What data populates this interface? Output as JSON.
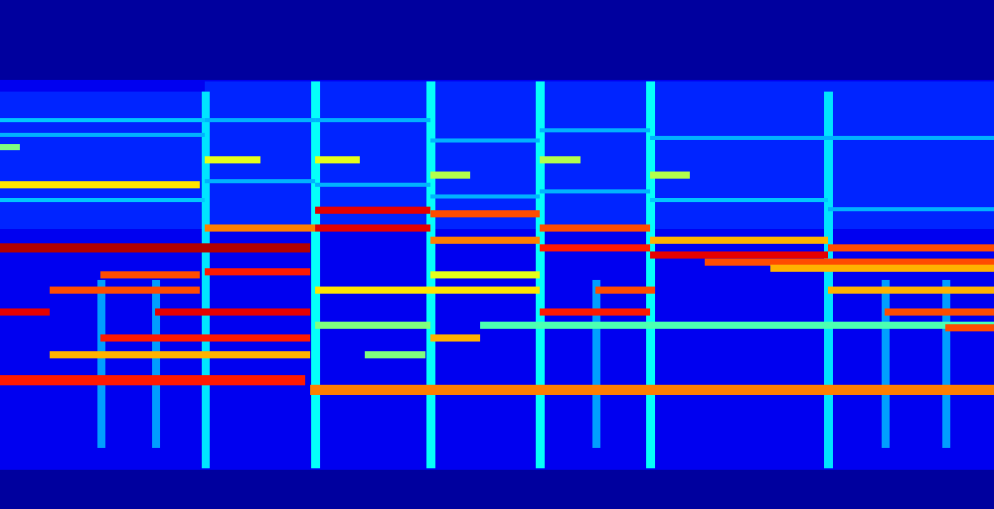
{
  "chart_data": {
    "type": "heatmap",
    "color": "jet",
    "tick_labels": false,
    "xlim": [
      0,
      100
    ],
    "ylim": [
      0,
      100
    ],
    "value_range": [
      0,
      1
    ],
    "cells": [
      {
        "x1": 0,
        "x2": 100,
        "y1": 0,
        "y2": 100,
        "value": 0.03
      },
      {
        "x1": 0,
        "x2": 100,
        "y1": 7.7,
        "y2": 84.3,
        "value": 0.11
      },
      {
        "x1": 0,
        "x2": 20.6,
        "y1": 55,
        "y2": 82,
        "value": 0.16
      },
      {
        "x1": 20.6,
        "x2": 100,
        "y1": 55,
        "y2": 84,
        "value": 0.16
      },
      {
        "x1": 20.3,
        "x2": 21.1,
        "y1": 8,
        "y2": 82,
        "value": 0.35
      },
      {
        "x1": 31.3,
        "x2": 32.2,
        "y1": 8,
        "y2": 84,
        "value": 0.38
      },
      {
        "x1": 42.9,
        "x2": 43.8,
        "y1": 8,
        "y2": 84,
        "value": 0.38
      },
      {
        "x1": 53.9,
        "x2": 54.8,
        "y1": 8,
        "y2": 84,
        "value": 0.38
      },
      {
        "x1": 65.0,
        "x2": 65.9,
        "y1": 8,
        "y2": 84,
        "value": 0.38
      },
      {
        "x1": 82.9,
        "x2": 83.8,
        "y1": 8,
        "y2": 82,
        "value": 0.35
      },
      {
        "x1": 9.8,
        "x2": 10.6,
        "y1": 12,
        "y2": 45,
        "value": 0.28
      },
      {
        "x1": 15.3,
        "x2": 16.1,
        "y1": 12,
        "y2": 45,
        "value": 0.28
      },
      {
        "x1": 59.6,
        "x2": 60.4,
        "y1": 12,
        "y2": 45,
        "value": 0.28
      },
      {
        "x1": 88.7,
        "x2": 89.5,
        "y1": 12,
        "y2": 45,
        "value": 0.28
      },
      {
        "x1": 94.8,
        "x2": 95.6,
        "y1": 12,
        "y2": 45,
        "value": 0.28
      },
      {
        "x1": 0,
        "x2": 20.6,
        "y1": 76.0,
        "y2": 76.8,
        "value": 0.32
      },
      {
        "x1": 0,
        "x2": 20.6,
        "y1": 73.1,
        "y2": 73.9,
        "value": 0.3
      },
      {
        "x1": 0,
        "x2": 20.6,
        "y1": 60.3,
        "y2": 61.1,
        "value": 0.32
      },
      {
        "x1": 0,
        "x2": 2.0,
        "y1": 70.5,
        "y2": 71.7,
        "value": 0.5
      },
      {
        "x1": 20.6,
        "x2": 31.7,
        "y1": 76.0,
        "y2": 76.8,
        "value": 0.3
      },
      {
        "x1": 20.6,
        "x2": 31.7,
        "y1": 64.0,
        "y2": 64.8,
        "value": 0.3
      },
      {
        "x1": 31.7,
        "x2": 43.3,
        "y1": 76.0,
        "y2": 76.8,
        "value": 0.3
      },
      {
        "x1": 31.7,
        "x2": 43.3,
        "y1": 63.3,
        "y2": 64.1,
        "value": 0.3
      },
      {
        "x1": 43.3,
        "x2": 54.3,
        "y1": 72.0,
        "y2": 72.8,
        "value": 0.3
      },
      {
        "x1": 43.3,
        "x2": 54.3,
        "y1": 61.0,
        "y2": 61.8,
        "value": 0.3
      },
      {
        "x1": 54.3,
        "x2": 65.4,
        "y1": 74.0,
        "y2": 74.8,
        "value": 0.3
      },
      {
        "x1": 54.3,
        "x2": 65.4,
        "y1": 62.0,
        "y2": 62.8,
        "value": 0.3
      },
      {
        "x1": 65.4,
        "x2": 83.3,
        "y1": 72.5,
        "y2": 73.3,
        "value": 0.3
      },
      {
        "x1": 65.4,
        "x2": 83.3,
        "y1": 60.3,
        "y2": 61.1,
        "value": 0.32
      },
      {
        "x1": 83.3,
        "x2": 100,
        "y1": 72.5,
        "y2": 73.3,
        "value": 0.3
      },
      {
        "x1": 83.3,
        "x2": 100,
        "y1": 58.5,
        "y2": 59.3,
        "value": 0.3
      },
      {
        "x1": 0,
        "x2": 20.1,
        "y1": 63.0,
        "y2": 64.4,
        "value": 0.65
      },
      {
        "x1": 20.6,
        "x2": 26.2,
        "y1": 67.9,
        "y2": 69.3,
        "value": 0.6
      },
      {
        "x1": 31.7,
        "x2": 36.2,
        "y1": 67.9,
        "y2": 69.3,
        "value": 0.6
      },
      {
        "x1": 43.3,
        "x2": 47.3,
        "y1": 64.9,
        "y2": 66.3,
        "value": 0.55
      },
      {
        "x1": 54.3,
        "x2": 58.4,
        "y1": 67.9,
        "y2": 69.3,
        "value": 0.55
      },
      {
        "x1": 65.4,
        "x2": 69.4,
        "y1": 64.9,
        "y2": 66.3,
        "value": 0.55
      },
      {
        "x1": 31.7,
        "x2": 43.3,
        "y1": 58.0,
        "y2": 59.4,
        "value": 0.9
      },
      {
        "x1": 43.3,
        "x2": 54.3,
        "y1": 57.3,
        "y2": 58.7,
        "value": 0.8
      },
      {
        "x1": 20.6,
        "x2": 31.7,
        "y1": 54.5,
        "y2": 55.9,
        "value": 0.75
      },
      {
        "x1": 31.7,
        "x2": 43.3,
        "y1": 54.5,
        "y2": 55.9,
        "value": 0.9
      },
      {
        "x1": 54.3,
        "x2": 65.4,
        "y1": 54.5,
        "y2": 55.9,
        "value": 0.8
      },
      {
        "x1": 43.3,
        "x2": 54.3,
        "y1": 52.1,
        "y2": 53.5,
        "value": 0.75
      },
      {
        "x1": 65.4,
        "x2": 83.3,
        "y1": 52.1,
        "y2": 53.5,
        "value": 0.7
      },
      {
        "x1": 0,
        "x2": 31.2,
        "y1": 50.4,
        "y2": 52.2,
        "value": 0.95
      },
      {
        "x1": 54.3,
        "x2": 65.4,
        "y1": 50.6,
        "y2": 52.0,
        "value": 0.85
      },
      {
        "x1": 83.3,
        "x2": 100,
        "y1": 50.6,
        "y2": 52.0,
        "value": 0.8
      },
      {
        "x1": 65.4,
        "x2": 83.3,
        "y1": 49.2,
        "y2": 50.6,
        "value": 0.9
      },
      {
        "x1": 70.9,
        "x2": 100,
        "y1": 47.8,
        "y2": 49.2,
        "value": 0.8
      },
      {
        "x1": 77.5,
        "x2": 100,
        "y1": 46.6,
        "y2": 48.0,
        "value": 0.7
      },
      {
        "x1": 10.1,
        "x2": 20.1,
        "y1": 45.3,
        "y2": 46.7,
        "value": 0.8
      },
      {
        "x1": 20.6,
        "x2": 31.2,
        "y1": 45.9,
        "y2": 47.3,
        "value": 0.85
      },
      {
        "x1": 43.3,
        "x2": 54.3,
        "y1": 45.3,
        "y2": 46.7,
        "value": 0.6
      },
      {
        "x1": 5.0,
        "x2": 20.1,
        "y1": 42.3,
        "y2": 43.7,
        "value": 0.8
      },
      {
        "x1": 31.7,
        "x2": 54.3,
        "y1": 42.3,
        "y2": 43.7,
        "value": 0.65
      },
      {
        "x1": 59.9,
        "x2": 65.9,
        "y1": 42.3,
        "y2": 43.7,
        "value": 0.8
      },
      {
        "x1": 83.3,
        "x2": 100,
        "y1": 42.3,
        "y2": 43.7,
        "value": 0.7
      },
      {
        "x1": 0,
        "x2": 5.0,
        "y1": 38.0,
        "y2": 39.4,
        "value": 0.9
      },
      {
        "x1": 15.6,
        "x2": 31.2,
        "y1": 38.0,
        "y2": 39.4,
        "value": 0.9
      },
      {
        "x1": 54.3,
        "x2": 65.4,
        "y1": 38.0,
        "y2": 39.4,
        "value": 0.85
      },
      {
        "x1": 89.0,
        "x2": 100,
        "y1": 38.0,
        "y2": 39.4,
        "value": 0.8
      },
      {
        "x1": 31.7,
        "x2": 43.3,
        "y1": 35.4,
        "y2": 36.8,
        "value": 0.5
      },
      {
        "x1": 48.3,
        "x2": 100,
        "y1": 35.4,
        "y2": 36.8,
        "value": 0.45
      },
      {
        "x1": 95.1,
        "x2": 100,
        "y1": 34.9,
        "y2": 36.3,
        "value": 0.8
      },
      {
        "x1": 10.1,
        "x2": 31.2,
        "y1": 32.9,
        "y2": 34.3,
        "value": 0.85
      },
      {
        "x1": 43.3,
        "x2": 48.3,
        "y1": 32.9,
        "y2": 34.3,
        "value": 0.7
      },
      {
        "x1": 5.0,
        "x2": 31.2,
        "y1": 29.6,
        "y2": 31.0,
        "value": 0.7
      },
      {
        "x1": 36.7,
        "x2": 42.8,
        "y1": 29.6,
        "y2": 31.0,
        "value": 0.5
      },
      {
        "x1": 0,
        "x2": 30.7,
        "y1": 24.3,
        "y2": 26.3,
        "value": 0.85
      },
      {
        "x1": 31.2,
        "x2": 100,
        "y1": 22.4,
        "y2": 24.4,
        "value": 0.75
      }
    ]
  }
}
